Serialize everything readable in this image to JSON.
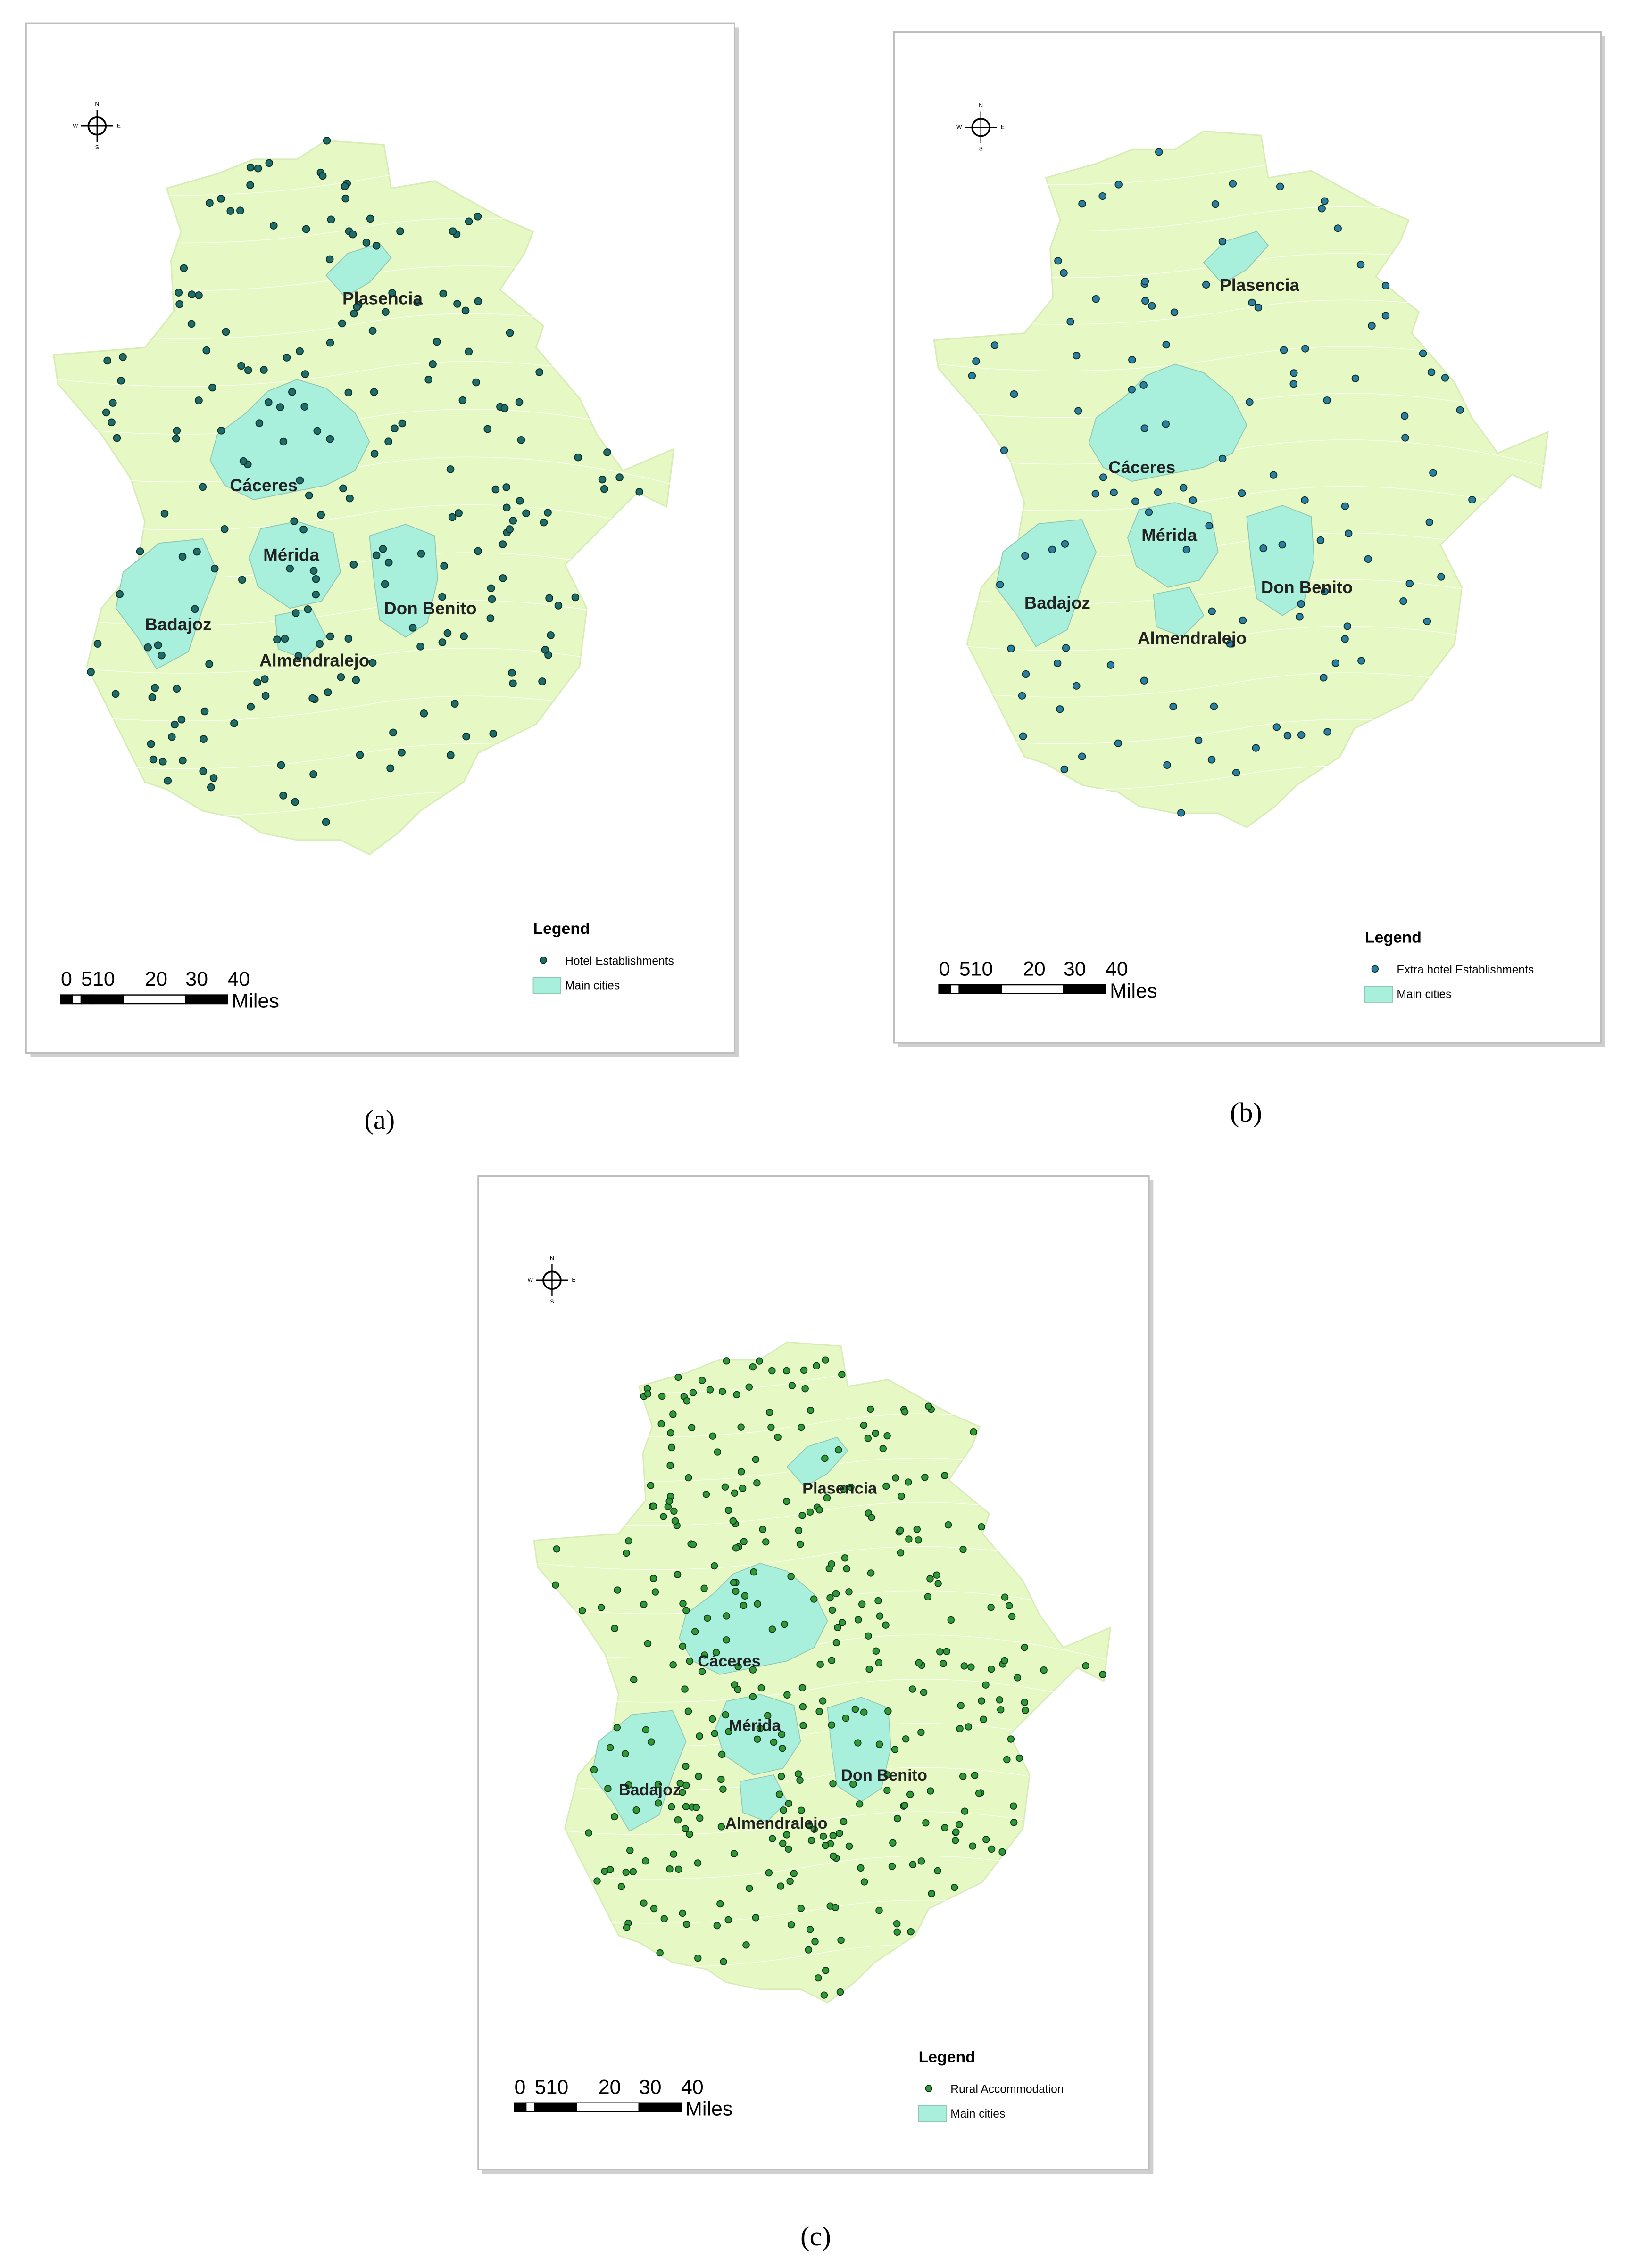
{
  "panels": [
    {
      "caption": "(a)",
      "legend_title": "Legend",
      "legend_items": [
        "Hotel Establishments",
        "Main cities"
      ],
      "point_color": "#1f6d6a",
      "cities": [
        "Plasencia",
        "Cáceres",
        "Mérida",
        "Badajoz",
        "Don Benito",
        "Almendralejo"
      ],
      "scale_labels": [
        "0",
        "510",
        "20",
        "30",
        "40"
      ],
      "scale_unit": "Miles",
      "compass": [
        "N",
        "S",
        "E",
        "W"
      ]
    },
    {
      "caption": "(b)",
      "legend_title": "Legend",
      "legend_items": [
        "Extra hotel Establishments",
        "Main cities"
      ],
      "point_color": "#2b7fa3",
      "cities": [
        "Plasencia",
        "Cáceres",
        "Mérida",
        "Badajoz",
        "Don Benito",
        "Almendralejo"
      ],
      "scale_labels": [
        "0",
        "510",
        "20",
        "30",
        "40"
      ],
      "scale_unit": "Miles",
      "compass": [
        "N",
        "S",
        "E",
        "W"
      ]
    },
    {
      "caption": "(c)",
      "legend_title": "Legend",
      "legend_items": [
        "Rural Accommodation",
        "Main cities"
      ],
      "point_color": "#2f9a2f",
      "cities": [
        "Plasencia",
        "Cáceres",
        "Mérida",
        "Badajoz",
        "Don Benito",
        "Almendralejo"
      ],
      "scale_labels": [
        "0",
        "510",
        "20",
        "30",
        "40"
      ],
      "scale_unit": "Miles",
      "compass": [
        "N",
        "S",
        "E",
        "W"
      ]
    }
  ]
}
